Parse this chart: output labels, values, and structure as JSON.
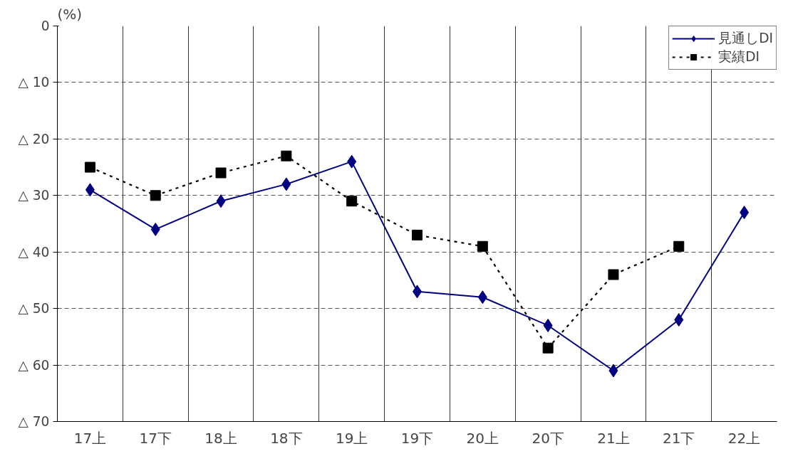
{
  "chart_data": {
    "type": "line",
    "ylabel": "(%)",
    "categories": [
      "17上",
      "17下",
      "18上",
      "18下",
      "19上",
      "19下",
      "20上",
      "20下",
      "21上",
      "21下",
      "22上"
    ],
    "series": [
      {
        "name": "見通しDI",
        "color": "#000080",
        "marker": "diamond",
        "line_style": "solid",
        "values": [
          -29,
          -36,
          -31,
          -28,
          -24,
          -47,
          -48,
          -53,
          -61,
          -52,
          -33
        ]
      },
      {
        "name": "実績DI",
        "color": "#000000",
        "marker": "square",
        "line_style": "dotted",
        "values": [
          -25,
          -30,
          -26,
          -23,
          -31,
          -37,
          -39,
          -57,
          -44,
          -39,
          null
        ]
      }
    ],
    "ylim": [
      -70,
      0
    ],
    "yticks": [
      0,
      {
        "value": -10,
        "label": "△ 10"
      },
      {
        "value": -20,
        "label": "△ 20"
      },
      {
        "value": -30,
        "label": "△ 30"
      },
      {
        "value": -40,
        "label": "△ 40"
      },
      {
        "value": -50,
        "label": "△ 50"
      },
      {
        "value": -60,
        "label": "△ 60"
      },
      {
        "value": -70,
        "label": "△ 70"
      }
    ],
    "grid": true,
    "legend": "top right"
  }
}
